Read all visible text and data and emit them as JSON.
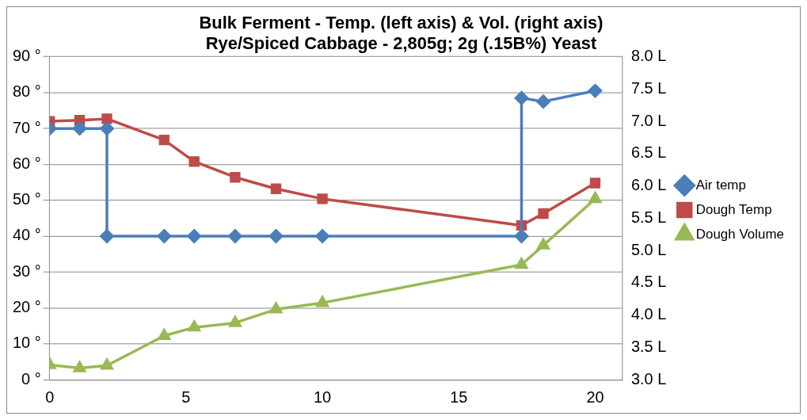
{
  "chart_data": {
    "type": "line",
    "title": [
      "Bulk Ferment - Temp. (left axis) & Vol. (right axis)",
      "Rye/Spiced Cabbage - 2,805g; 2g (.15B%) Yeast"
    ],
    "xlim": [
      0,
      21
    ],
    "xticks": [
      0,
      5,
      10,
      15,
      20
    ],
    "ylim": [
      0,
      90
    ],
    "yticks": [
      {
        "value": 0,
        "label": "0 °"
      },
      {
        "value": 10,
        "label": "10 °"
      },
      {
        "value": 20,
        "label": "20 °"
      },
      {
        "value": 30,
        "label": "30 °"
      },
      {
        "value": 40,
        "label": "40 °"
      },
      {
        "value": 50,
        "label": "50 °"
      },
      {
        "value": 60,
        "label": "60 °"
      },
      {
        "value": 70,
        "label": "70 °"
      },
      {
        "value": 80,
        "label": "80 °"
      },
      {
        "value": 90,
        "label": "90 °"
      }
    ],
    "y2lim": [
      3,
      8
    ],
    "y2ticks": [
      {
        "value": 3,
        "label": "3.0 L"
      },
      {
        "value": 3.5,
        "label": "3.5 L"
      },
      {
        "value": 4,
        "label": "4.0 L"
      },
      {
        "value": 4.5,
        "label": "4.5 L"
      },
      {
        "value": 5,
        "label": "5.0 L"
      },
      {
        "value": 5.5,
        "label": "5.5 L"
      },
      {
        "value": 6,
        "label": "6.0 L"
      },
      {
        "value": 6.5,
        "label": "6.5 L"
      },
      {
        "value": 7,
        "label": "7.0 L"
      },
      {
        "value": 7.5,
        "label": "7.5 L"
      },
      {
        "value": 8,
        "label": "8.0 L"
      }
    ],
    "grid": "y",
    "legend": "right",
    "line_style": "solid",
    "series": [
      {
        "name": "Air temp",
        "color": "#4a7ebb",
        "marker": "diamond",
        "x": [
          0,
          1.1,
          2.1,
          2.1,
          4.2,
          5.3,
          6.8,
          8.3,
          10,
          17.3,
          17.3,
          18.1,
          20
        ],
        "values": [
          70,
          70,
          70,
          40,
          40,
          40,
          40,
          40,
          40,
          40,
          78.5,
          77.5,
          80.5
        ]
      },
      {
        "name": "Dough Temp",
        "color": "#be4b48",
        "marker": "square",
        "x": [
          0,
          1.1,
          2.1,
          4.2,
          5.3,
          6.8,
          8.3,
          10,
          17.3,
          18.1,
          20
        ],
        "values": [
          72,
          72.3,
          72.7,
          66.8,
          60.8,
          56.4,
          53.2,
          50.4,
          43,
          46.3,
          54.8
        ]
      },
      {
        "name": "Dough Volume",
        "color": "#98b954",
        "marker": "triangle",
        "axis": "y2",
        "x": [
          0,
          1.1,
          2.1,
          4.2,
          5.3,
          6.8,
          8.3,
          10,
          17.3,
          18.1,
          20
        ],
        "values": [
          3.23,
          3.18,
          3.22,
          3.68,
          3.81,
          3.88,
          4.09,
          4.19,
          4.78,
          5.08,
          5.8
        ]
      }
    ]
  }
}
